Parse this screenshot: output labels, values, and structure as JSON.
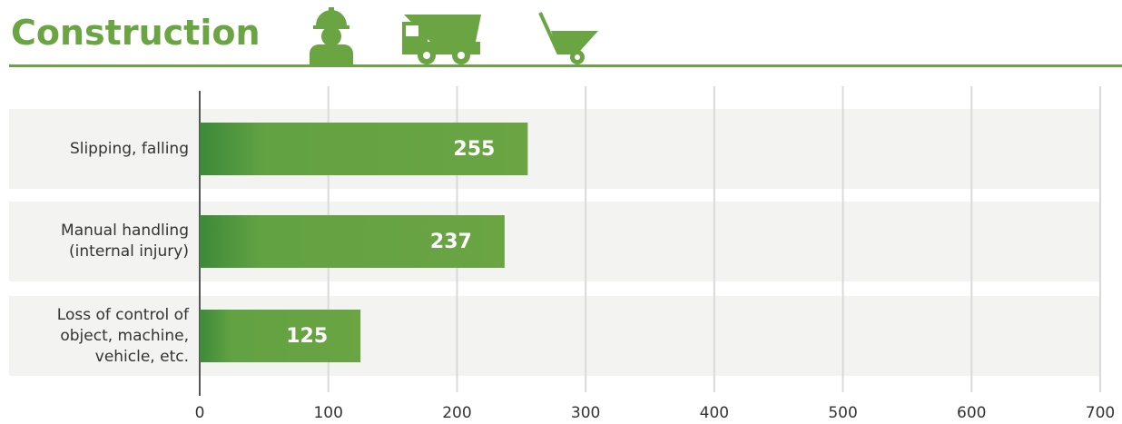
{
  "chart_data": {
    "type": "bar",
    "orientation": "horizontal",
    "title": "Construction",
    "categories": [
      "Slipping, falling",
      "Manual handling (internal injury)",
      "Loss of control of object, machine, vehicle, etc."
    ],
    "values": [
      255,
      237,
      125
    ],
    "color": "#6aa443",
    "xlim": [
      0,
      700
    ],
    "xticks": [
      0,
      100,
      200,
      300,
      400,
      500,
      600,
      700
    ],
    "grid": true
  }
}
